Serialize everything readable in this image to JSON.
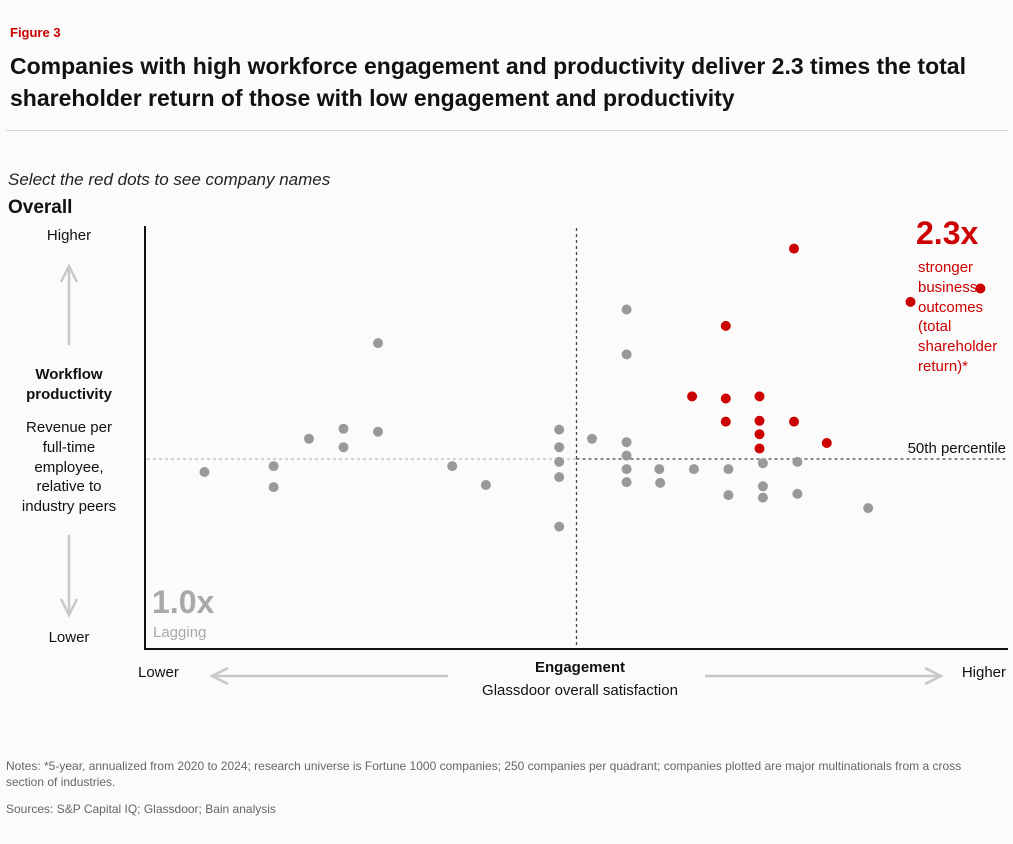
{
  "figure_label": "Figure 3",
  "title": "Companies with high workforce engagement and productivity deliver 2.3 times the total shareholder return of those with low engagement and productivity",
  "instruction": "Select the red dots to see company names",
  "section": "Overall",
  "notes": "Notes: *5-year, annualized from 2020 to 2024; research universe is Fortune 1000 companies; 250 companies per quadrant; companies plotted are major multinationals from a cross section of industries.",
  "sources": "Sources: S&P Capital IQ; Glassdoor; Bain analysis",
  "colors": {
    "accent": "#cc0000",
    "dot_gray": "#999999",
    "axis": "#111111"
  },
  "chart_data": {
    "type": "scatter",
    "xlabel": "Engagement",
    "xlabel_sub": "Glassdoor overall satisfaction",
    "x_low": "Lower",
    "x_high": "Higher",
    "ylabel_lines": [
      "Workflow",
      "productivity"
    ],
    "ylabel_sub_lines": [
      "Revenue per",
      "full-time",
      "employee,",
      "relative to",
      "industry peers"
    ],
    "y_high": "Higher",
    "y_low": "Lower",
    "xlim": [
      0,
      100
    ],
    "ylim": [
      0,
      100
    ],
    "threshold_x": 50,
    "threshold_y": 45,
    "threshold_label": "50th percentile",
    "lagging": {
      "value": "1.0x",
      "label": "Lagging"
    },
    "leading": {
      "value": "2.3x",
      "label_lines": [
        "stronger",
        "business",
        "outcomes",
        "(total",
        "shareholder",
        "return)*"
      ]
    },
    "series": [
      {
        "color": "#999999",
        "points": [
          [
            6.9,
            41.9
          ],
          [
            14.9,
            43.3
          ],
          [
            14.9,
            38.3
          ],
          [
            19.0,
            49.8
          ],
          [
            23.0,
            52.2
          ],
          [
            23.0,
            47.8
          ],
          [
            27.0,
            51.5
          ],
          [
            27.0,
            72.6
          ],
          [
            35.6,
            43.3
          ],
          [
            39.5,
            38.8
          ],
          [
            48.0,
            28.9
          ],
          [
            48.0,
            52.0
          ],
          [
            48.0,
            47.8
          ],
          [
            48.0,
            44.3
          ],
          [
            48.0,
            40.7
          ],
          [
            51.8,
            49.8
          ],
          [
            55.8,
            49.0
          ],
          [
            55.8,
            45.8
          ],
          [
            55.8,
            42.6
          ],
          [
            55.8,
            39.5
          ],
          [
            55.8,
            69.9
          ],
          [
            55.8,
            80.6
          ],
          [
            59.6,
            42.6
          ],
          [
            59.7,
            39.3
          ],
          [
            63.6,
            42.6
          ],
          [
            67.6,
            42.6
          ],
          [
            67.6,
            36.4
          ],
          [
            71.6,
            44.0
          ],
          [
            71.6,
            38.5
          ],
          [
            71.6,
            35.8
          ],
          [
            75.6,
            44.3
          ],
          [
            75.6,
            36.7
          ],
          [
            83.8,
            33.3
          ]
        ]
      },
      {
        "color": "#cc0000",
        "points": [
          [
            63.4,
            59.9
          ],
          [
            67.3,
            76.7
          ],
          [
            67.3,
            59.4
          ],
          [
            67.3,
            53.9
          ],
          [
            71.2,
            59.9
          ],
          [
            71.2,
            54.1
          ],
          [
            71.2,
            50.9
          ],
          [
            71.2,
            47.5
          ],
          [
            75.2,
            95.1
          ],
          [
            75.2,
            53.9
          ],
          [
            79.0,
            48.8
          ],
          [
            88.7,
            82.4
          ],
          [
            96.8,
            85.6
          ]
        ]
      }
    ]
  }
}
